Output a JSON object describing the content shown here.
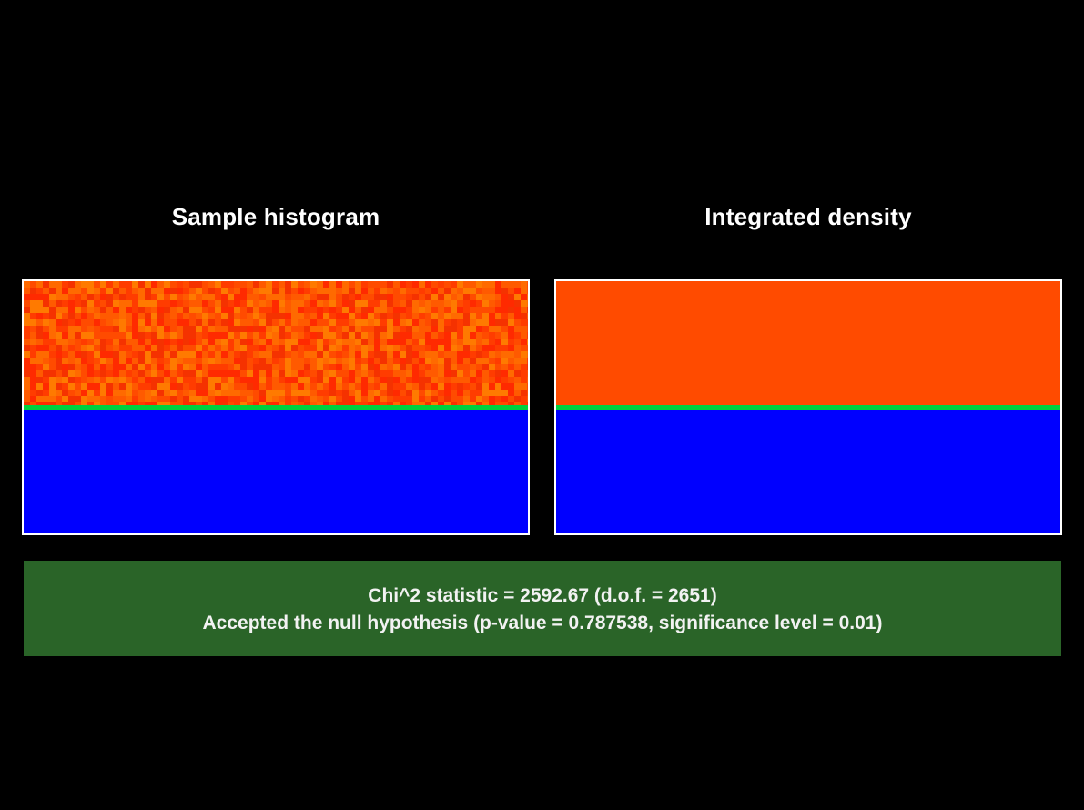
{
  "panels": {
    "left": {
      "title": "Sample histogram"
    },
    "right": {
      "title": "Integrated density"
    }
  },
  "colors": {
    "background": "#000000",
    "upper_region": "#ff4b00",
    "noise_palette": [
      "#ff2a00",
      "#ff3c00",
      "#ff4b00",
      "#ff5a00",
      "#ff6a00",
      "#ff7a00",
      "#f53200"
    ],
    "lower_region": "#0000ff",
    "divider": "#00d040",
    "panel_border": "#ffffff",
    "result_background": "#2a6428"
  },
  "result": {
    "line1": "Chi^2 statistic = 2592.67 (d.o.f. = 2651)",
    "line2": "Accepted the null hypothesis (p-value = 0.787538, significance level = 0.01)"
  }
}
